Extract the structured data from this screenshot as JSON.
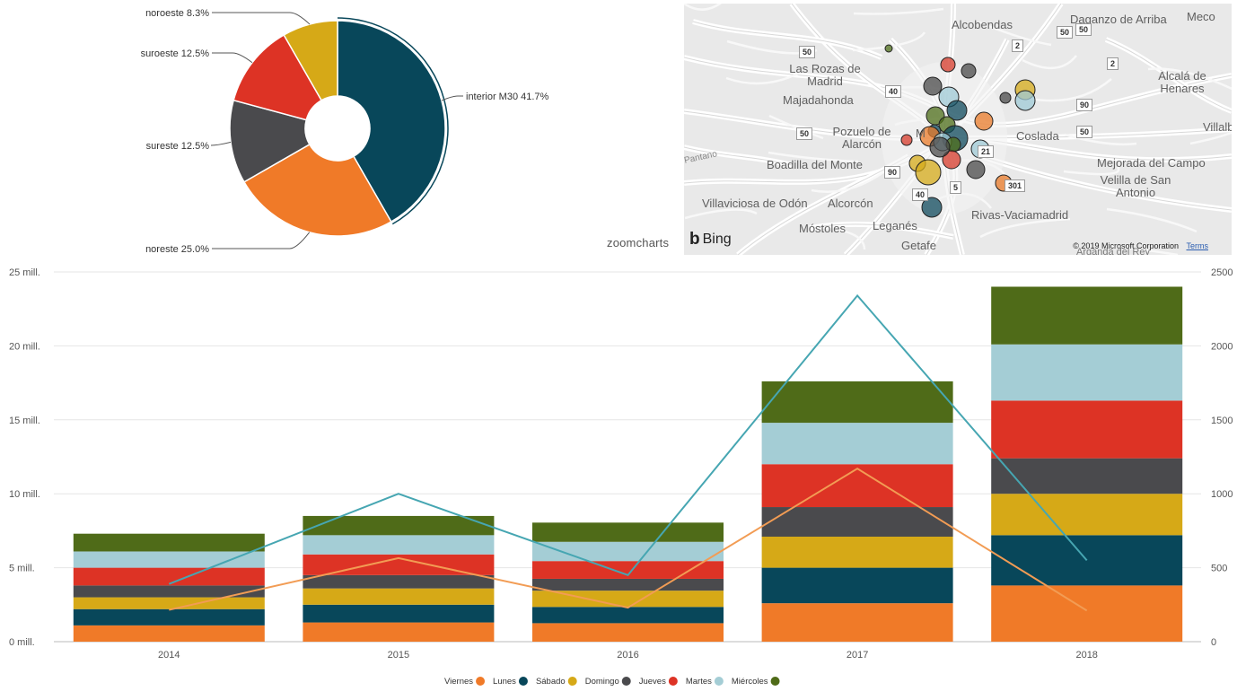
{
  "pie_widget": {
    "logo_text": "zoomcharts"
  },
  "map_widget": {
    "attribution": "© 2019 Microsoft Corporation",
    "terms_label": "Terms",
    "provider_label": "Bing",
    "cities": [
      {
        "name": "Alcobendas"
      },
      {
        "name": "Daganzo de Arriba"
      },
      {
        "name": "Meco"
      },
      {
        "name": "Las Rozas de Madrid"
      },
      {
        "name": "Majadahonda"
      },
      {
        "name": "Alcalá de Henares"
      },
      {
        "name": "Pozuelo de Alarcón"
      },
      {
        "name": "Coslada"
      },
      {
        "name": "Villalb"
      },
      {
        "name": "Boadilla del Monte"
      },
      {
        "name": "Mejorada del Campo"
      },
      {
        "name": "Velilla de San Antonio"
      },
      {
        "name": "Villaviciosa de Odón"
      },
      {
        "name": "Alcorcón"
      },
      {
        "name": "Rivas-Vaciamadrid"
      },
      {
        "name": "Móstoles"
      },
      {
        "name": "Leganés"
      },
      {
        "name": "Getafe"
      },
      {
        "name": "Arganda del Rey"
      },
      {
        "name": "Pantano"
      },
      {
        "name": "M"
      }
    ],
    "road_signs": [
      "50",
      "50",
      "40",
      "50",
      "90",
      "40",
      "5",
      "2",
      "2",
      "50",
      "90",
      "50",
      "301",
      "21"
    ],
    "bubble_colors": [
      "#0f4a5c",
      "#e97b2a",
      "#d6ab1a",
      "#4a4a4a",
      "#d63a2a",
      "#9fcad6",
      "#4d6e1a"
    ]
  },
  "chart_data": [
    {
      "type": "pie",
      "variant": "donut",
      "title": "",
      "slices": [
        {
          "label": "interior M30",
          "value": 41.7,
          "color": "#08475a",
          "label_text": "interior M30 41.7%"
        },
        {
          "label": "noreste",
          "value": 25.0,
          "color": "#f07a28",
          "label_text": "noreste 25.0%"
        },
        {
          "label": "sureste",
          "value": 12.5,
          "color": "#4a4a4d",
          "label_text": "sureste 12.5%"
        },
        {
          "label": "suroeste",
          "value": 12.5,
          "color": "#dd3325",
          "label_text": "suroeste 12.5%"
        },
        {
          "label": "noroeste",
          "value": 8.3,
          "color": "#d6a917",
          "label_text": "noroeste 8.3%"
        }
      ]
    },
    {
      "type": "bar",
      "stacked": true,
      "title": "",
      "categories": [
        "2014",
        "2015",
        "2016",
        "2017",
        "2018"
      ],
      "ylim": [
        0,
        25
      ],
      "y_ticks": [
        "0 mill.",
        "5 mill.",
        "10 mill.",
        "15 mill.",
        "20 mill.",
        "25 mill."
      ],
      "y2lim": [
        0,
        2500
      ],
      "y2_ticks": [
        "0",
        "500",
        "1000",
        "1500",
        "2000",
        "2500"
      ],
      "grid": true,
      "legend_position": "bottom-center",
      "series": [
        {
          "name": "Viernes",
          "color": "#f07a28",
          "values": [
            1.1,
            1.3,
            1.25,
            2.6,
            3.8
          ]
        },
        {
          "name": "Lunes",
          "color": "#08475a",
          "values": [
            1.1,
            1.2,
            1.1,
            2.4,
            3.4
          ]
        },
        {
          "name": "Sábado",
          "color": "#d6a917",
          "values": [
            0.8,
            1.1,
            1.1,
            2.1,
            2.8
          ]
        },
        {
          "name": "Domingo",
          "color": "#4a4a4d",
          "values": [
            0.8,
            0.9,
            0.8,
            2.0,
            2.4
          ]
        },
        {
          "name": "Jueves",
          "color": "#dd3325",
          "values": [
            1.2,
            1.4,
            1.2,
            2.9,
            3.9
          ]
        },
        {
          "name": "Martes",
          "color": "#a4cdd5",
          "values": [
            1.1,
            1.3,
            1.3,
            2.8,
            3.8
          ]
        },
        {
          "name": "Miércoles",
          "color": "#4f6b18",
          "values": [
            1.2,
            1.3,
            1.3,
            2.8,
            3.9
          ]
        }
      ],
      "lines": [
        {
          "axis": "secondary",
          "color": "#46a6b2",
          "values": [
            390,
            1000,
            450,
            2340,
            550
          ]
        },
        {
          "axis": "secondary",
          "color": "#f29c54",
          "values": [
            215,
            565,
            230,
            1170,
            210
          ]
        }
      ]
    }
  ]
}
